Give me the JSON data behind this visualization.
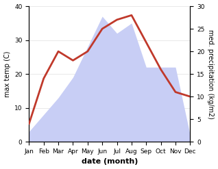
{
  "months": [
    "Jan",
    "Feb",
    "Mar",
    "Apr",
    "May",
    "Jun",
    "Jul",
    "Aug",
    "Sep",
    "Oct",
    "Nov",
    "Dec"
  ],
  "precipitation": [
    3,
    8,
    13,
    19,
    28,
    37,
    32,
    35,
    22,
    22,
    22,
    2
  ],
  "max_temp": [
    4,
    14,
    20,
    18,
    20,
    25,
    27,
    28,
    22,
    16,
    11,
    10
  ],
  "temp_color": "#c0392b",
  "precip_fill_color": "#c8cef5",
  "precip_edge_color": "#c8cef5",
  "ylim_left": [
    0,
    40
  ],
  "ylim_right": [
    0,
    30
  ],
  "yticks_left": [
    0,
    10,
    20,
    30,
    40
  ],
  "yticks_right": [
    0,
    5,
    10,
    15,
    20,
    25,
    30
  ],
  "xlabel": "date (month)",
  "ylabel_left": "max temp (C)",
  "ylabel_right": "med. precipitation (kg/m2)",
  "bg_color": "#ffffff",
  "grid_color": "#e0e0e0",
  "temp_linewidth": 2.0,
  "xlabel_fontsize": 8,
  "ylabel_fontsize": 7,
  "tick_fontsize": 6.5
}
